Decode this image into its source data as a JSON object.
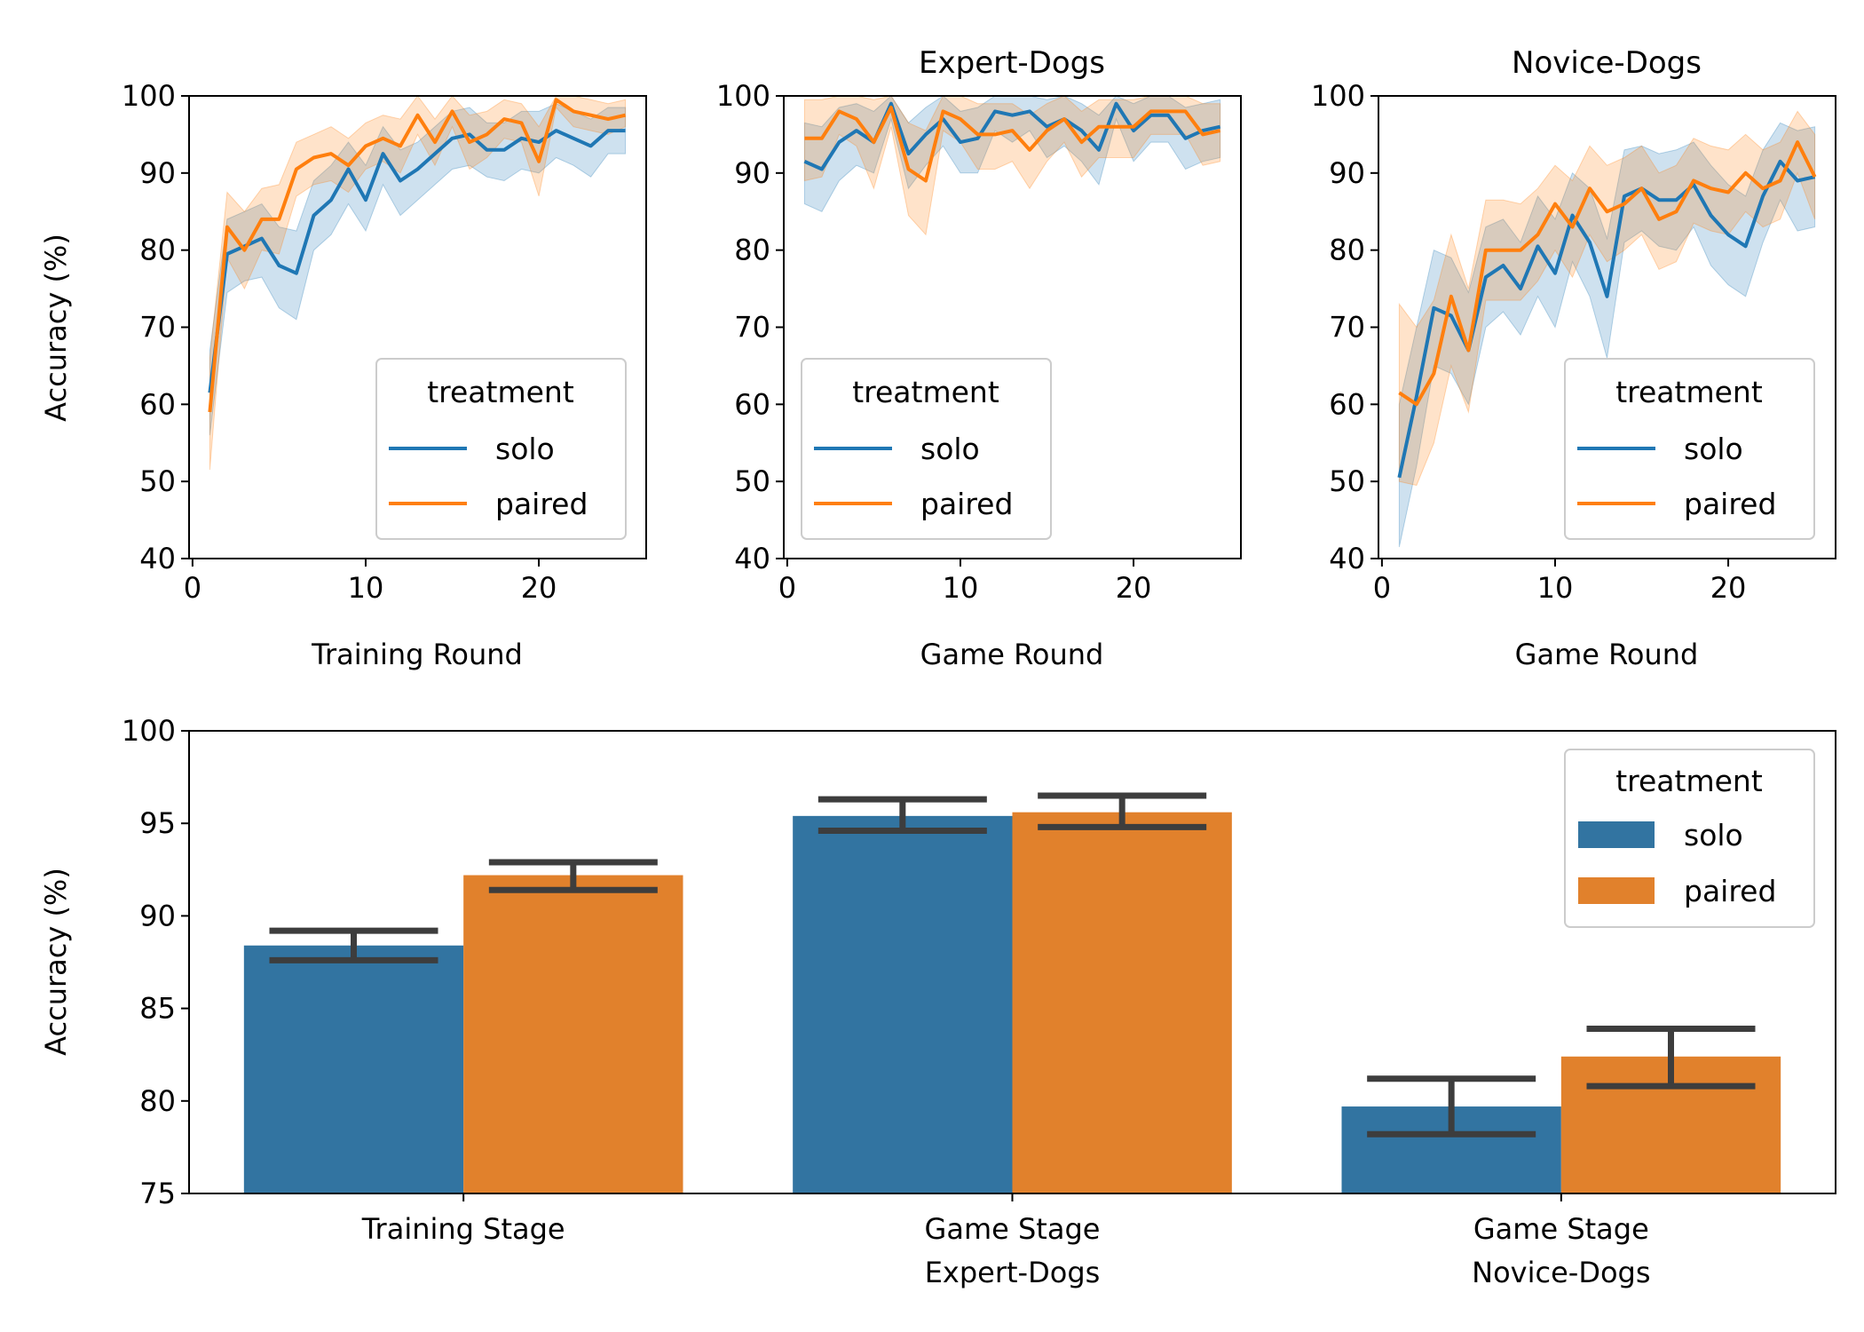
{
  "colors": {
    "solo": "#1f77b4",
    "paired": "#ff7f0e",
    "solo_bar": "#3274a1",
    "paired_bar": "#e1812c",
    "errorbar": "#3d3d3d"
  },
  "chart_data": [
    {
      "type": "line",
      "title": "",
      "xlabel": "Training Round",
      "ylabel": "Accuracy (%)",
      "xlim": [
        -0.2,
        26.2
      ],
      "ylim": [
        40,
        100
      ],
      "xticks": [
        "0",
        "10",
        "20"
      ],
      "yticks": [
        "40",
        "50",
        "60",
        "70",
        "80",
        "90",
        "100"
      ],
      "legend": {
        "title": "treatment",
        "position": "lower right"
      },
      "x": [
        1,
        2,
        3,
        4,
        5,
        6,
        7,
        8,
        9,
        10,
        11,
        12,
        13,
        14,
        15,
        16,
        17,
        18,
        19,
        20,
        21,
        22,
        23,
        24,
        25
      ],
      "series": [
        {
          "name": "solo",
          "color": "solo",
          "values": [
            61.5,
            79.5,
            80.5,
            81.5,
            78,
            77,
            84.5,
            86.5,
            90.5,
            86.5,
            92.5,
            89,
            90.5,
            92.5,
            94.5,
            95,
            93,
            93,
            94.5,
            94,
            95.5,
            94.5,
            93.5,
            95.5,
            95.5
          ],
          "ci_low": [
            56,
            74.5,
            76,
            76.5,
            72.5,
            71,
            80,
            82,
            86,
            82.5,
            88.5,
            84.5,
            86.5,
            88.5,
            90.5,
            91,
            89.5,
            89,
            90.5,
            90,
            92,
            91,
            89.5,
            92.5,
            92.5
          ],
          "ci_high": [
            67,
            84,
            85,
            86,
            83,
            82.5,
            89,
            91,
            94,
            91,
            96,
            93,
            94,
            96,
            98,
            98.5,
            96.5,
            96.5,
            98,
            98,
            99,
            98,
            97,
            98.5,
            98.5
          ]
        },
        {
          "name": "paired",
          "color": "paired",
          "values": [
            59,
            83,
            80,
            84,
            84,
            90.5,
            92,
            92.5,
            91,
            93.5,
            94.5,
            93.5,
            97.5,
            94,
            98,
            94,
            95,
            97,
            96.5,
            91.5,
            99.5,
            98,
            97.5,
            97,
            97.5
          ],
          "ci_low": [
            51.5,
            79,
            75,
            80,
            79.5,
            87,
            88.5,
            89,
            87.5,
            90.5,
            91.5,
            90,
            95,
            91,
            96,
            90.5,
            92,
            94.5,
            94,
            87,
            98.5,
            96,
            95.5,
            95,
            96
          ],
          "ci_high": [
            66,
            87.5,
            85,
            88,
            88.5,
            94,
            95,
            96,
            94.5,
            96.5,
            97.5,
            97,
            100,
            97,
            100,
            97.5,
            98,
            99.5,
            99,
            96,
            100,
            100,
            99.5,
            99,
            99.5
          ]
        }
      ]
    },
    {
      "type": "line",
      "title": "Expert-Dogs",
      "xlabel": "Game Round",
      "ylabel": "",
      "xlim": [
        -0.2,
        26.2
      ],
      "ylim": [
        40,
        100
      ],
      "xticks": [
        "0",
        "10",
        "20"
      ],
      "yticks": [
        "40",
        "50",
        "60",
        "70",
        "80",
        "90",
        "100"
      ],
      "legend": {
        "title": "treatment",
        "position": "lower left"
      },
      "x": [
        1,
        2,
        3,
        4,
        5,
        6,
        7,
        8,
        9,
        10,
        11,
        12,
        13,
        14,
        15,
        16,
        17,
        18,
        19,
        20,
        21,
        22,
        23,
        24,
        25
      ],
      "series": [
        {
          "name": "solo",
          "color": "solo",
          "values": [
            91.5,
            90.5,
            94,
            95.5,
            94,
            99,
            92.5,
            95,
            97,
            94,
            94.5,
            98,
            97.5,
            98,
            96,
            97,
            95.5,
            93,
            99,
            95.5,
            97.5,
            97.5,
            94.5,
            95.5,
            96
          ],
          "ci_low": [
            86,
            85,
            89,
            91,
            90,
            97,
            88,
            91,
            93.5,
            90,
            90,
            95.5,
            94,
            95.5,
            92,
            93.5,
            91.5,
            88.5,
            97,
            91.5,
            94,
            94,
            90.5,
            91.5,
            92
          ],
          "ci_high": [
            96.5,
            96,
            98.5,
            99,
            98,
            100,
            96.5,
            98.5,
            100,
            98,
            98.5,
            100,
            100,
            100,
            99.5,
            100,
            99,
            97.5,
            100,
            99,
            100,
            100,
            98.5,
            99,
            99.5
          ]
        },
        {
          "name": "paired",
          "color": "paired",
          "values": [
            94.5,
            94.5,
            98,
            97,
            94,
            98.5,
            90.5,
            89,
            98,
            97,
            95,
            95,
            95.5,
            93,
            95.5,
            97,
            94,
            96,
            96,
            96,
            98,
            98,
            98,
            95,
            95.5
          ],
          "ci_low": [
            89,
            89.5,
            95,
            93.5,
            88,
            96,
            84.5,
            82,
            95.5,
            94,
            90.5,
            90.5,
            91.5,
            88,
            91.5,
            94,
            89.5,
            92,
            92,
            92,
            95,
            95,
            95,
            91,
            91.5
          ],
          "ci_high": [
            99.5,
            99.5,
            100,
            100,
            99.5,
            100,
            96.5,
            95.5,
            100,
            100,
            99,
            99,
            99,
            97.5,
            99,
            100,
            98,
            99.5,
            99.5,
            99.5,
            100,
            100,
            100,
            99,
            99
          ]
        }
      ]
    },
    {
      "type": "line",
      "title": "Novice-Dogs",
      "xlabel": "Game Round",
      "ylabel": "",
      "xlim": [
        -0.2,
        26.2
      ],
      "ylim": [
        40,
        100
      ],
      "xticks": [
        "0",
        "10",
        "20"
      ],
      "yticks": [
        "40",
        "50",
        "60",
        "70",
        "80",
        "90",
        "100"
      ],
      "legend": {
        "title": "treatment",
        "position": "lower right"
      },
      "x": [
        1,
        2,
        3,
        4,
        5,
        6,
        7,
        8,
        9,
        10,
        11,
        12,
        13,
        14,
        15,
        16,
        17,
        18,
        19,
        20,
        21,
        22,
        23,
        24,
        25
      ],
      "series": [
        {
          "name": "solo",
          "color": "solo",
          "values": [
            50.5,
            61,
            72.5,
            71.5,
            67,
            76.5,
            78,
            75,
            80.5,
            77,
            84.5,
            81,
            74,
            87,
            88,
            86.5,
            86.5,
            88.5,
            84.5,
            82,
            80.5,
            87,
            91.5,
            89,
            89.5
          ],
          "ci_low": [
            41.5,
            52,
            65,
            64,
            60,
            70,
            72,
            69,
            74,
            70,
            78.5,
            74,
            66,
            81,
            82.5,
            80.5,
            80,
            83,
            78,
            75.5,
            74,
            81,
            86.5,
            82.5,
            83
          ],
          "ci_high": [
            60,
            70,
            80,
            79,
            74.5,
            83,
            84,
            81,
            87,
            84,
            90,
            88,
            81.5,
            93,
            93.5,
            92.5,
            93,
            94,
            91,
            88.5,
            87,
            93,
            96.5,
            95.5,
            96
          ]
        },
        {
          "name": "paired",
          "color": "paired",
          "values": [
            61.5,
            60,
            64,
            74,
            67,
            80,
            80,
            80,
            82,
            86,
            83,
            88,
            85,
            86,
            88,
            84,
            85,
            89,
            88,
            87.5,
            90,
            88,
            89,
            94,
            89.5
          ],
          "ci_low": [
            50,
            49.5,
            55,
            65,
            59,
            73.5,
            73.5,
            73.5,
            76,
            80,
            76.5,
            82,
            78.5,
            80,
            82,
            77.5,
            78.5,
            83.5,
            82.5,
            82,
            85,
            83,
            84,
            90,
            84
          ],
          "ci_high": [
            73,
            70,
            73.5,
            82,
            75,
            86.5,
            86.5,
            86,
            88,
            91,
            89,
            93.5,
            91,
            92,
            93.5,
            90,
            91,
            94.5,
            93.5,
            93,
            95,
            93,
            94,
            98,
            95
          ]
        }
      ]
    },
    {
      "type": "bar",
      "title": "",
      "xlabel": "",
      "ylabel": "Accuracy (%)",
      "ylim": [
        75,
        100
      ],
      "yticks": [
        "75",
        "80",
        "85",
        "90",
        "95",
        "100"
      ],
      "categories": [
        [
          "Training Stage"
        ],
        [
          "Game Stage",
          "Expert-Dogs"
        ],
        [
          "Game Stage",
          "Novice-Dogs"
        ]
      ],
      "legend": {
        "title": "treatment",
        "position": "upper right"
      },
      "series": [
        {
          "name": "solo",
          "color": "solo_bar",
          "values": [
            88.4,
            95.4,
            79.7
          ],
          "err_low": [
            87.6,
            94.6,
            78.2
          ],
          "err_high": [
            89.2,
            96.3,
            81.2
          ]
        },
        {
          "name": "paired",
          "color": "paired_bar",
          "values": [
            92.2,
            95.6,
            82.4
          ],
          "err_low": [
            91.4,
            94.8,
            80.8
          ],
          "err_high": [
            92.9,
            96.5,
            83.9
          ]
        }
      ]
    }
  ]
}
